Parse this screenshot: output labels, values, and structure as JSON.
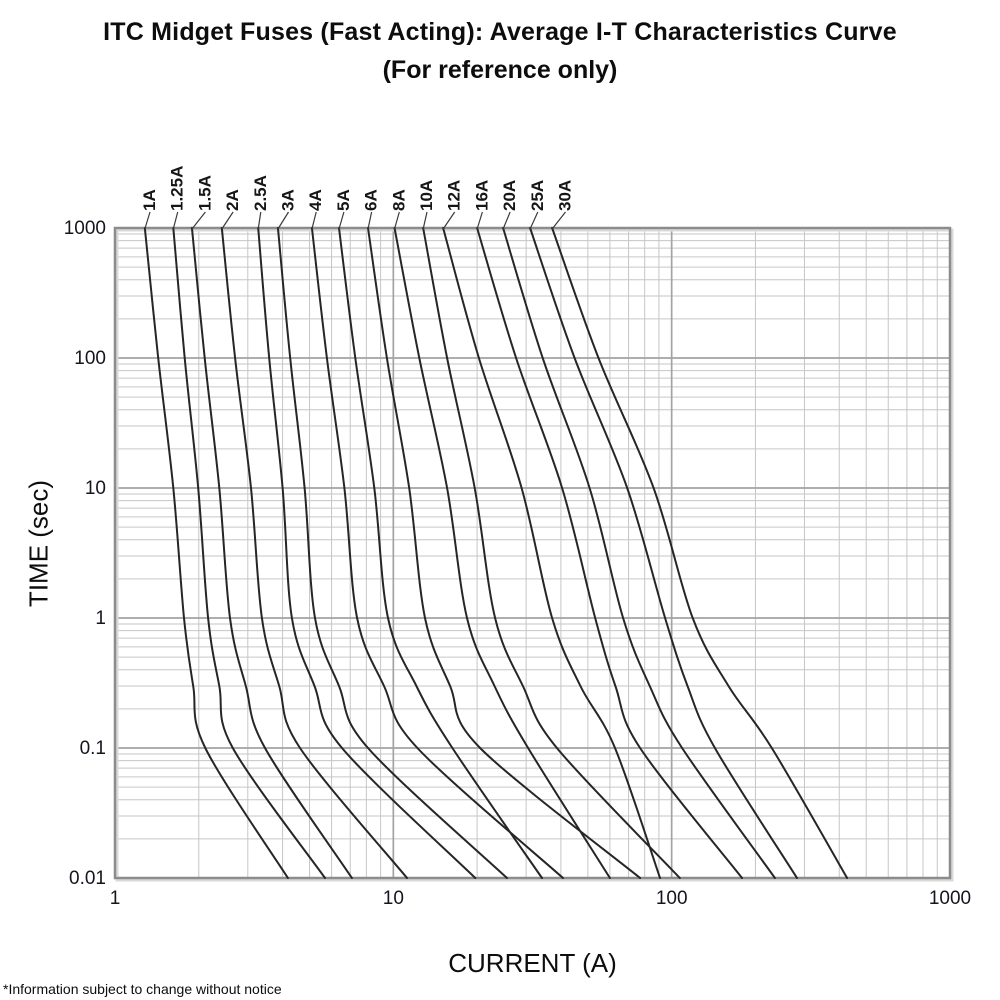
{
  "title": "ITC Midget Fuses (Fast Acting): Average I-T Characteristics Curve",
  "subtitle": "(For reference only)",
  "footnote": "*Information subject to change without notice",
  "chart_data": {
    "type": "line",
    "title": "ITC Midget Fuses (Fast Acting): Average I-T Characteristics Curve (For reference only)",
    "xlabel": "CURRENT (A)",
    "ylabel": "TIME (sec)",
    "x_scale": "log",
    "y_scale": "log",
    "xlim": [
      1,
      1000
    ],
    "ylim": [
      0.01,
      1000
    ],
    "x_tick_labels": [
      "1",
      "10",
      "100",
      "1000"
    ],
    "x_tick_values": [
      1,
      10,
      100,
      1000
    ],
    "y_tick_labels": [
      "1000",
      "100",
      "10",
      "1",
      "0.1",
      "0.01"
    ],
    "y_tick_values": [
      1000,
      100,
      10,
      1,
      0.1,
      0.01
    ],
    "grid": "log major and minor, both axes",
    "legend_position": "labels above plot, rotated 90deg with leader lines to curve tops",
    "curve_color": "#262626",
    "major_grid_color": "#a3a3a3",
    "minor_grid_color": "#c6c6c6",
    "frame_color": "#8c8c8c",
    "times_sec": [
      1000,
      100,
      10,
      1,
      0.3,
      0.1,
      0.01
    ],
    "series": [
      {
        "name": "1A",
        "currents_A": [
          1.28,
          1.43,
          1.62,
          1.77,
          1.91,
          2.11,
          4.18
        ]
      },
      {
        "name": "1.25A",
        "currents_A": [
          1.62,
          1.78,
          1.99,
          2.16,
          2.37,
          2.65,
          5.68
        ]
      },
      {
        "name": "1.5A",
        "currents_A": [
          1.89,
          2.1,
          2.37,
          2.59,
          2.95,
          3.46,
          7.1
        ]
      },
      {
        "name": "2A",
        "currents_A": [
          2.42,
          2.7,
          3.08,
          3.37,
          3.89,
          4.62,
          11.2
        ]
      },
      {
        "name": "2.5A",
        "currents_A": [
          3.27,
          3.58,
          4.0,
          4.32,
          5.21,
          6.54,
          19.7
        ]
      },
      {
        "name": "3A",
        "currents_A": [
          3.85,
          4.26,
          4.8,
          5.23,
          6.38,
          8.11,
          25.6
        ]
      },
      {
        "name": "4A",
        "currents_A": [
          5.1,
          5.77,
          6.67,
          7.41,
          9.26,
          12.2,
          40.7
        ]
      },
      {
        "name": "5A",
        "currents_A": [
          6.38,
          7.3,
          8.54,
          9.57,
          12.1,
          16.3,
          34.2
        ]
      },
      {
        "name": "6A",
        "currents_A": [
          8.11,
          9.48,
          11.4,
          13.0,
          16.0,
          20.5,
          77.0
        ]
      },
      {
        "name": "8A",
        "currents_A": [
          10.1,
          12.4,
          15.6,
          18.4,
          23.1,
          30.5,
          60.0
        ]
      },
      {
        "name": "10A",
        "currents_A": [
          12.8,
          15.6,
          19.6,
          23.2,
          29.2,
          38.7,
          107
        ]
      },
      {
        "name": "12A",
        "currents_A": [
          15.1,
          20.3,
          28.9,
          37.2,
          47.0,
          62.6,
          90.8
        ]
      },
      {
        "name": "16A",
        "currents_A": [
          20.0,
          27.6,
          40.4,
          53.1,
          62.8,
          77.0,
          179
        ]
      },
      {
        "name": "20A",
        "currents_A": [
          24.8,
          34.4,
          50.7,
          66.9,
          83.4,
          109,
          235
        ]
      },
      {
        "name": "25A",
        "currents_A": [
          31.0,
          44.8,
          69.2,
          94.7,
          114,
          143,
          282
        ]
      },
      {
        "name": "30A",
        "currents_A": [
          37.2,
          54.6,
          86.1,
          119,
          160,
          229,
          427
        ]
      }
    ]
  }
}
